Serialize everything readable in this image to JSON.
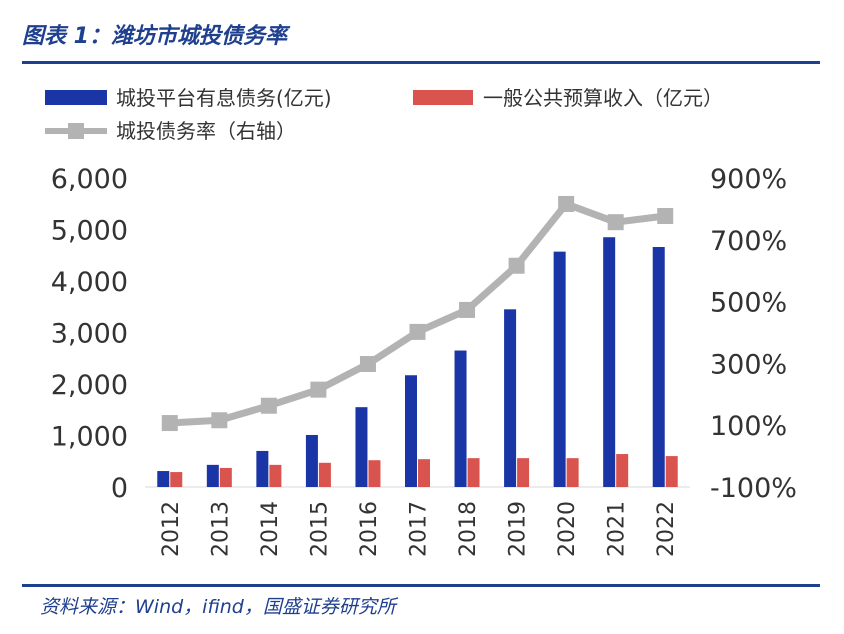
{
  "figure": {
    "title": "图表 1：潍坊市城投债务率",
    "source": "资料来源：Wind，ifind，国盛证券研究所"
  },
  "colors": {
    "debt": "#1a35a6",
    "revenue": "#d9534f",
    "ratio": "#b3b3b3",
    "rule": "#1f3f8f"
  },
  "chart_data": {
    "type": "bar",
    "categories": [
      "2012",
      "2013",
      "2014",
      "2015",
      "2016",
      "2017",
      "2018",
      "2019",
      "2020",
      "2021",
      "2022"
    ],
    "series": [
      {
        "name": "城投平台有息债务(亿元)",
        "type": "bar",
        "axis": "left",
        "values": [
          310,
          430,
          700,
          1010,
          1550,
          2170,
          2650,
          3450,
          4570,
          4850,
          4660
        ]
      },
      {
        "name": "一般公共预算收入（亿元）",
        "type": "bar",
        "axis": "left",
        "values": [
          290,
          370,
          430,
          470,
          520,
          540,
          560,
          560,
          560,
          640,
          600
        ]
      },
      {
        "name": "城投债务率（右轴）",
        "type": "line",
        "axis": "right",
        "unit": "%",
        "values": [
          107,
          116,
          163,
          215,
          298,
          402,
          473,
          616,
          816,
          757,
          777
        ]
      }
    ],
    "y_left": {
      "ylim": [
        0,
        6000
      ],
      "ticks": [
        "0",
        "1,000",
        "2,000",
        "3,000",
        "4,000",
        "5,000",
        "6,000"
      ]
    },
    "y_right": {
      "ylim": [
        -100,
        900
      ],
      "ticks": [
        "-100%",
        "100%",
        "300%",
        "500%",
        "700%",
        "900%"
      ]
    },
    "legend_position": "top",
    "grid": false
  }
}
